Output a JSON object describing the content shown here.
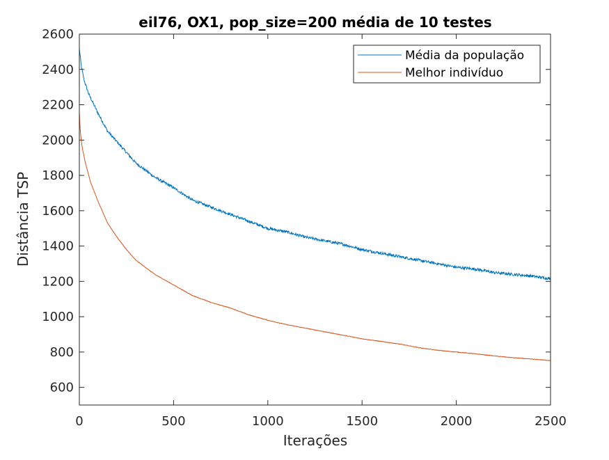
{
  "chart_data": {
    "type": "line",
    "title": "eil76, OX1, pop_size=200 média de 10 testes",
    "xlabel": "Iterações",
    "ylabel": "Distância TSP",
    "xlim": [
      0,
      2500
    ],
    "ylim": [
      500,
      2600
    ],
    "xticks": [
      0,
      500,
      1000,
      1500,
      2000,
      2500
    ],
    "yticks": [
      600,
      800,
      1000,
      1200,
      1400,
      1600,
      1800,
      2000,
      2200,
      2400,
      2600
    ],
    "grid": false,
    "legend_position": "top-right",
    "series": [
      {
        "name": "Média da população",
        "color": "#0072BD",
        "noise": 8,
        "x": [
          0,
          10,
          25,
          50,
          100,
          150,
          200,
          250,
          300,
          350,
          400,
          500,
          600,
          700,
          800,
          900,
          1000,
          1100,
          1200,
          1300,
          1400,
          1500,
          1600,
          1700,
          1800,
          1900,
          2000,
          2100,
          2200,
          2300,
          2400,
          2500
        ],
        "y": [
          2520,
          2420,
          2340,
          2260,
          2150,
          2050,
          1990,
          1930,
          1870,
          1830,
          1790,
          1730,
          1660,
          1620,
          1580,
          1540,
          1500,
          1480,
          1450,
          1430,
          1410,
          1380,
          1360,
          1340,
          1320,
          1300,
          1280,
          1270,
          1250,
          1240,
          1230,
          1215
        ]
      },
      {
        "name": "Melhor indivíduo",
        "color": "#D95319",
        "noise": 1.5,
        "x": [
          0,
          5,
          15,
          30,
          60,
          100,
          150,
          200,
          250,
          300,
          350,
          400,
          500,
          600,
          700,
          800,
          900,
          1000,
          1100,
          1200,
          1300,
          1400,
          1500,
          1600,
          1700,
          1800,
          1900,
          2000,
          2100,
          2200,
          2300,
          2400,
          2500
        ],
        "y": [
          2160,
          2050,
          1960,
          1880,
          1760,
          1650,
          1530,
          1450,
          1380,
          1320,
          1280,
          1240,
          1180,
          1120,
          1080,
          1050,
          1010,
          980,
          955,
          935,
          915,
          895,
          875,
          860,
          845,
          825,
          810,
          800,
          790,
          778,
          768,
          760,
          752
        ]
      }
    ]
  }
}
